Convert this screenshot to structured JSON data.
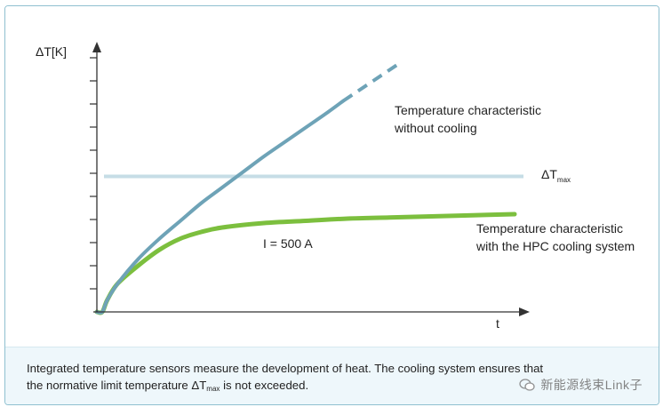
{
  "chart_data": {
    "type": "line",
    "ylabel": "ΔT[K]",
    "xlabel": "t",
    "threshold": {
      "label_main": "ΔT",
      "label_sub": "max",
      "value": 0.61
    },
    "annotation_current": "I = 500 A",
    "series": [
      {
        "name": "without_cooling",
        "label_line1": "Temperature characteristic",
        "label_line2": "without cooling",
        "color": "#6ea3b7",
        "x": [
          0.0,
          0.013,
          0.025,
          0.05,
          0.1,
          0.15,
          0.2,
          0.25,
          0.3,
          0.35,
          0.4,
          0.45,
          0.5,
          0.55,
          0.59
        ],
        "y": [
          0.0,
          0.0,
          0.054,
          0.128,
          0.24,
          0.33,
          0.41,
          0.49,
          0.56,
          0.63,
          0.7,
          0.765,
          0.83,
          0.895,
          0.95
        ],
        "dashed_after_x": 0.59,
        "dashed_x": [
          0.59,
          0.725
        ],
        "dashed_y": [
          0.95,
          1.12
        ]
      },
      {
        "name": "hpc_cooling",
        "label_line1": "Temperature characteristic",
        "label_line2": "with the HPC cooling system",
        "color": "#7cbf3e",
        "x": [
          0.0,
          0.013,
          0.025,
          0.05,
          0.1,
          0.15,
          0.2,
          0.25,
          0.3,
          0.4,
          0.5,
          0.6,
          0.7,
          0.8,
          0.9,
          1.0
        ],
        "y": [
          0.0,
          0.0,
          0.054,
          0.128,
          0.21,
          0.28,
          0.33,
          0.36,
          0.38,
          0.4,
          0.41,
          0.42,
          0.425,
          0.43,
          0.435,
          0.44
        ]
      }
    ],
    "xlim": [
      0,
      1
    ],
    "ylim": [
      0,
      1.2
    ],
    "y_ticks_count": 11,
    "x_ticks_count": 0,
    "grid": false
  },
  "caption": {
    "part1": "Integrated temperature sensors measure the development of heat. The cooling system ensures that",
    "part2": "the normative limit temperature ΔT",
    "sub": "max",
    "part3": " is not exceeded."
  },
  "watermark": {
    "text": "新能源线束Link子"
  },
  "colors": {
    "axis": "#333333",
    "threshold": "#c6dde6",
    "frame": "#8fc0d0",
    "caption_bg": "#eef7fb"
  }
}
